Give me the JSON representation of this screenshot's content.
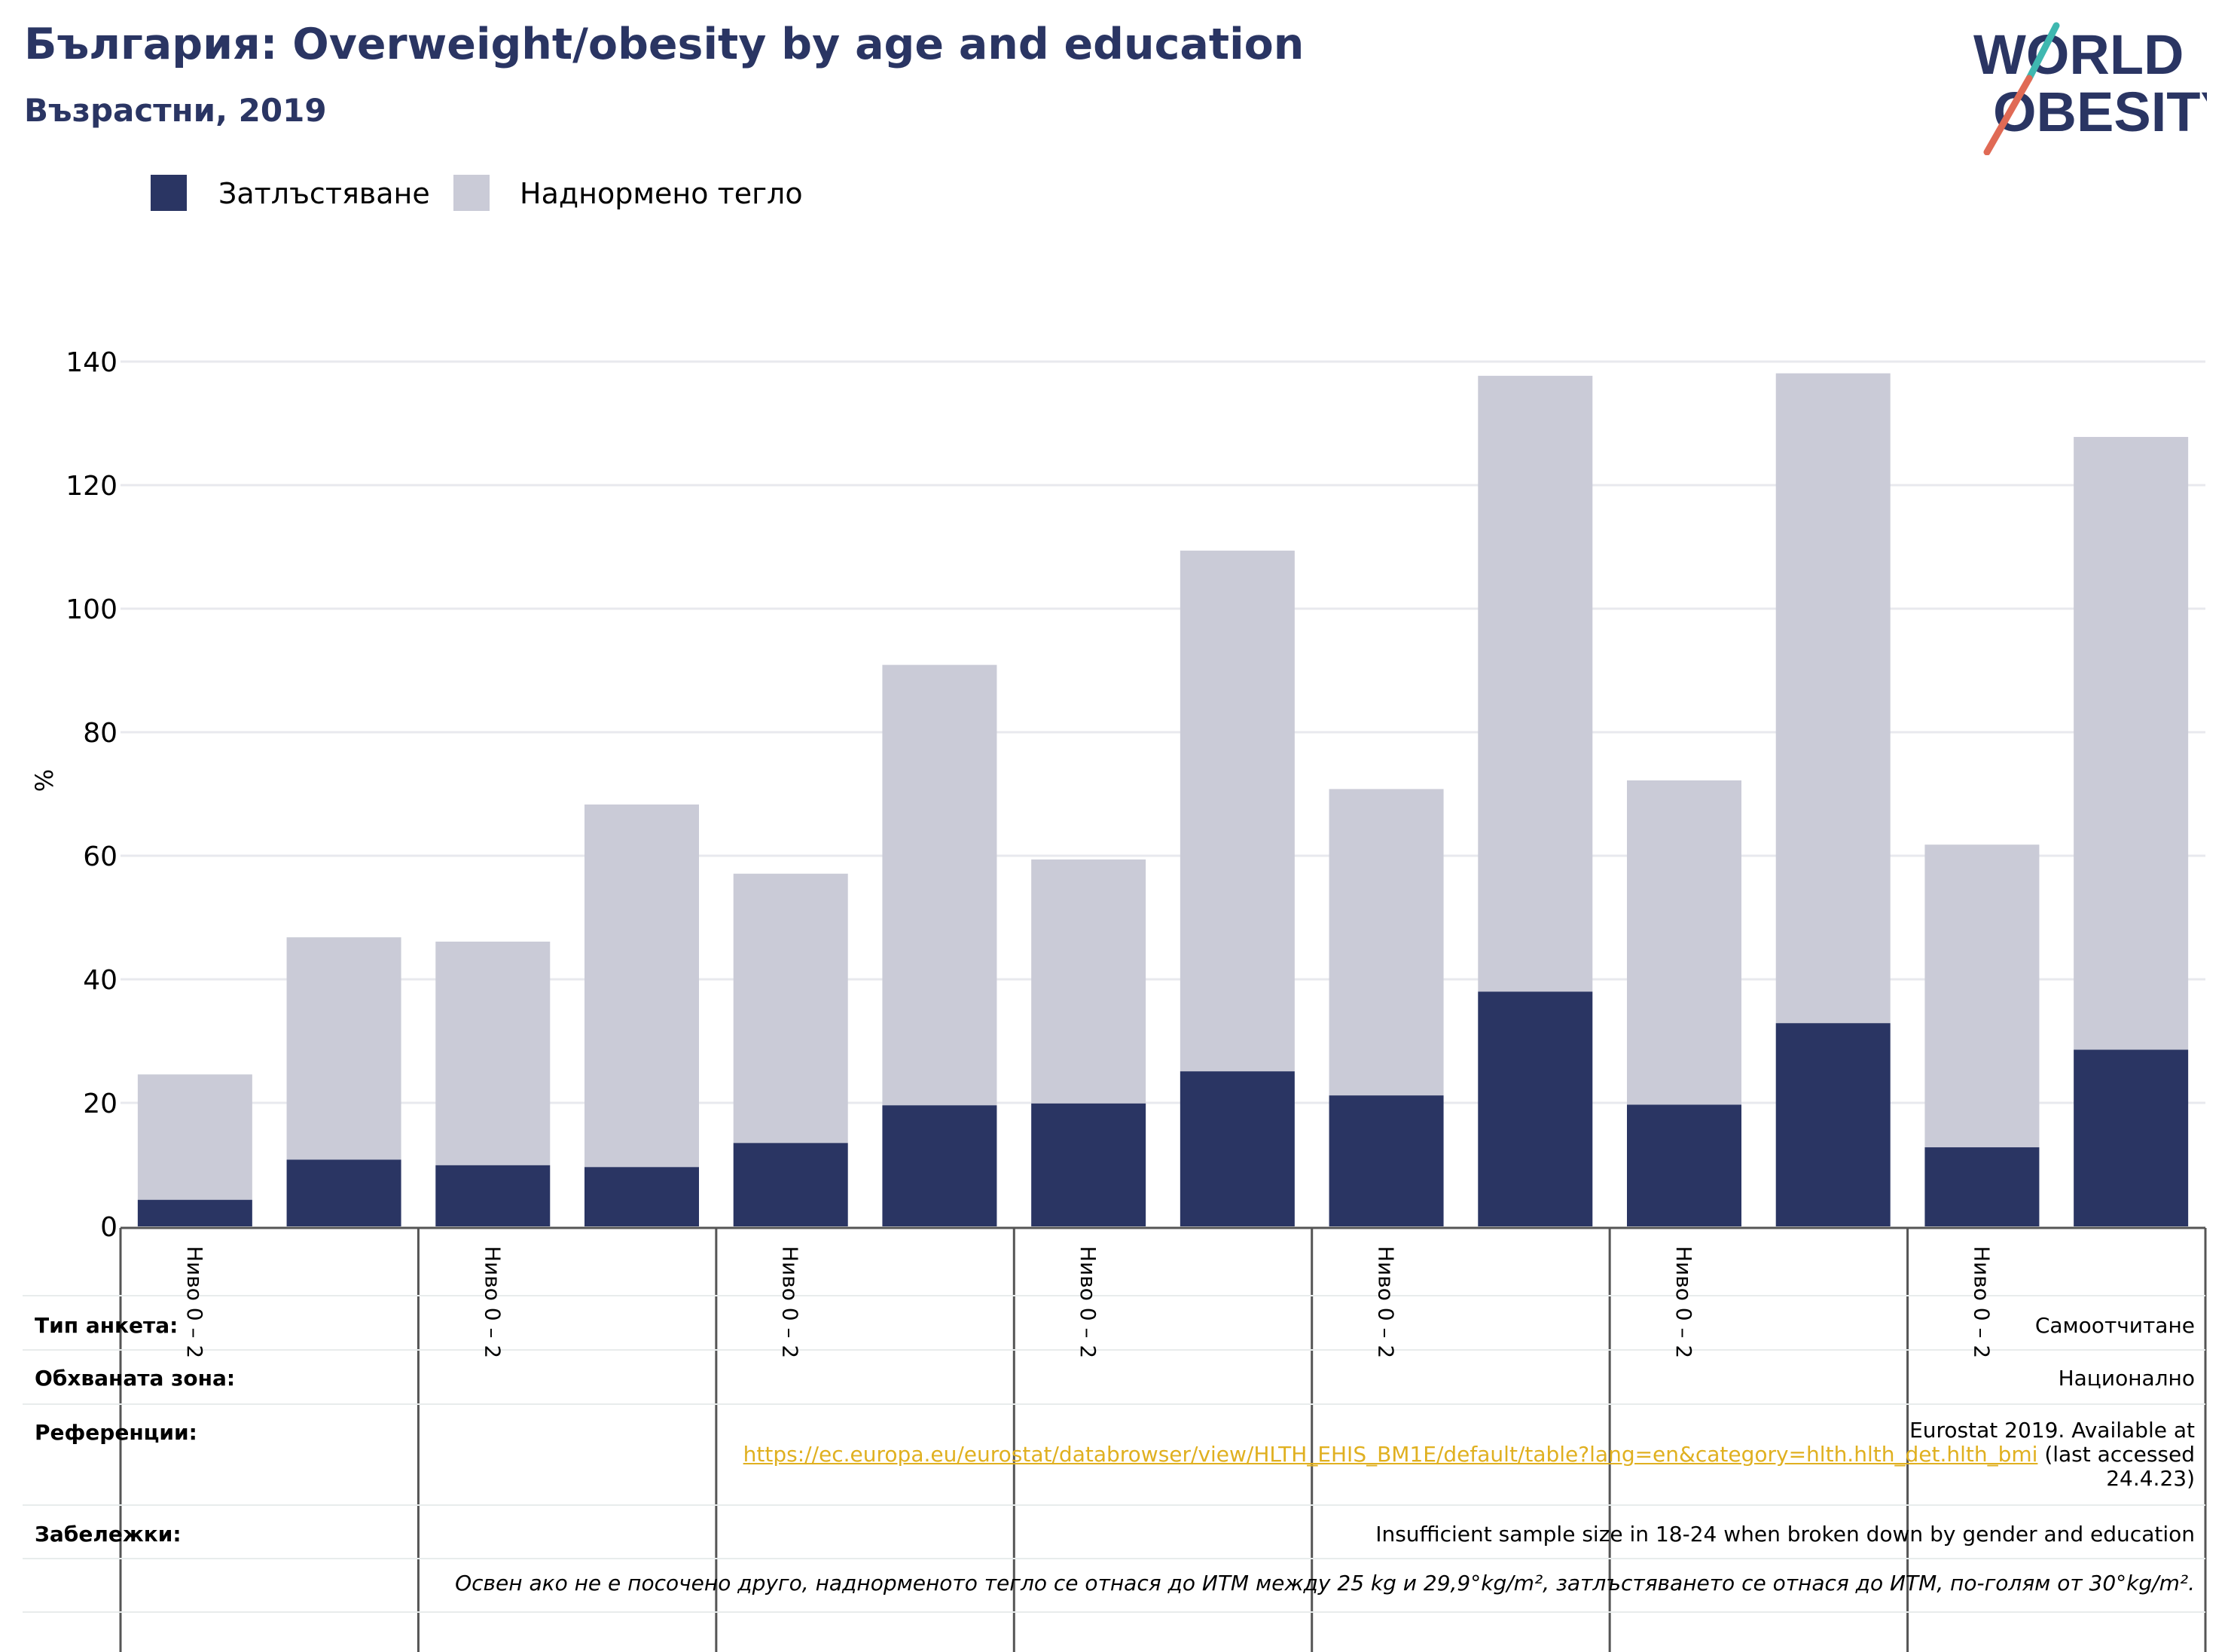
{
  "header": {
    "title": "България: Overweight/obesity by age and education",
    "subtitle": "Възрастни, 2019"
  },
  "logo": {
    "line1": "WORLD",
    "line2": "OBESITY"
  },
  "colors": {
    "obesity": "#2a3563",
    "overweight": "#cacbd7",
    "link": "#e0b020",
    "title": "#2a3563"
  },
  "chart_data": {
    "type": "bar",
    "stacked": true,
    "title": "България: Overweight/obesity by age and education",
    "subtitle": "Възрастни, 2019",
    "ylabel": "%",
    "ylim": [
      0,
      140
    ],
    "yticks": [
      0,
      20,
      40,
      60,
      80,
      100,
      120,
      140
    ],
    "grid": true,
    "legend_position": "top-left",
    "categories": [
      "Ниво 0 – 2",
      "",
      "Ниво 0 – 2",
      "",
      "Ниво 0 – 2",
      "",
      "Ниво 0 – 2",
      "",
      "Ниво 0 – 2",
      "",
      "Ниво 0 – 2",
      "",
      "Ниво 0 – 2",
      ""
    ],
    "series": [
      {
        "name": "Затлъстяване",
        "color": "#2a3563",
        "values": [
          4.3,
          10.8,
          9.9,
          9.6,
          13.5,
          19.6,
          19.9,
          25.1,
          21.2,
          38.0,
          19.7,
          32.9,
          12.8,
          28.6
        ]
      },
      {
        "name": "Наднормено тегло",
        "color": "#cacbd7",
        "values": [
          20.3,
          36.0,
          36.2,
          58.7,
          43.6,
          71.3,
          39.5,
          84.3,
          49.6,
          99.7,
          52.5,
          105.2,
          49.0,
          99.2
        ]
      }
    ]
  },
  "info": {
    "survey_type_label": "Тип анкета:",
    "survey_type_value": "Самоотчитане",
    "coverage_label": "Обхваната зона:",
    "coverage_value": "Национално",
    "references_label": "Референции:",
    "references_line1": "Eurostat 2019. Available at",
    "references_link": "https://ec.europa.eu/eurostat/databrowser/view/HLTH_EHIS_BM1E/default/table?lang=en&category=hlth.hlth_det.hlth_bmi",
    "references_suffix": " (last accessed",
    "references_line3": "24.4.23)",
    "notes_label": "Забележки:",
    "notes_value": "Insufficient sample size in 18-24 when broken down by gender and education",
    "notes_italic": "Освен ако не е посочено друго, наднорменото тегло се отнася до ИТМ между 25 kg и 29,9°kg/m², затлъстяването се отнася до ИТМ, по-голям от 30°kg/m²."
  }
}
